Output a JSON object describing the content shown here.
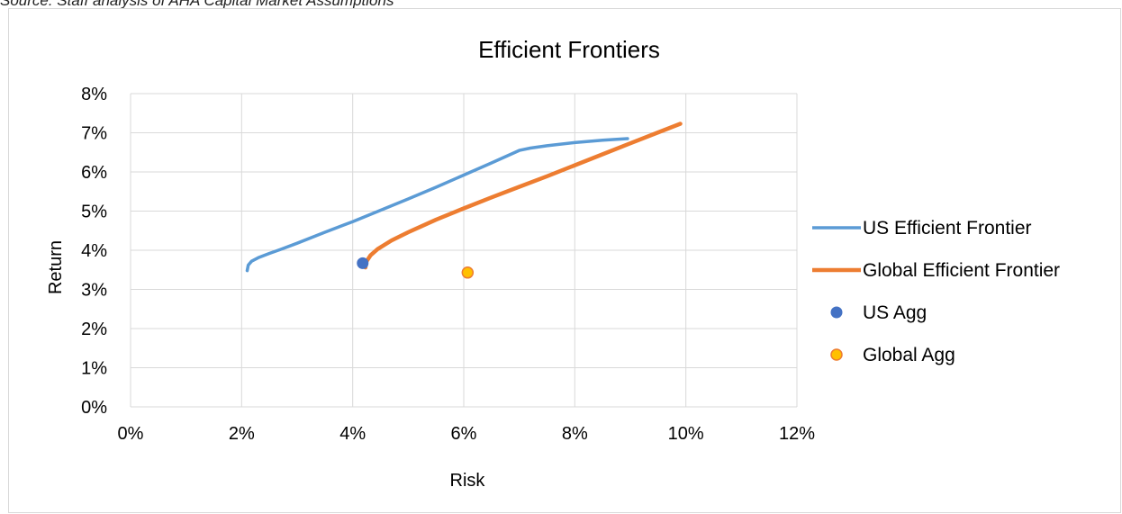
{
  "source_text": "Source: Staff analysis of AHA Capital Market Assumptions",
  "chart_data": {
    "type": "scatter",
    "title": "Efficient Frontiers",
    "xlabel": "Risk",
    "ylabel": "Return",
    "xlim": [
      0,
      0.12
    ],
    "ylim": [
      0,
      0.08
    ],
    "x_ticks": [
      "0%",
      "2%",
      "4%",
      "6%",
      "8%",
      "10%",
      "12%"
    ],
    "y_ticks": [
      "0%",
      "1%",
      "2%",
      "3%",
      "4%",
      "5%",
      "6%",
      "7%",
      "8%"
    ],
    "grid": true,
    "legend_position": "right",
    "series": [
      {
        "name": "US Efficient Frontier",
        "kind": "line",
        "color": "#5b9bd5",
        "points": [
          [
            0.021,
            0.0348
          ],
          [
            0.0212,
            0.0362
          ],
          [
            0.0218,
            0.0372
          ],
          [
            0.023,
            0.0381
          ],
          [
            0.025,
            0.0392
          ],
          [
            0.027,
            0.0402
          ],
          [
            0.03,
            0.0418
          ],
          [
            0.035,
            0.0446
          ],
          [
            0.04,
            0.0473
          ],
          [
            0.045,
            0.0502
          ],
          [
            0.05,
            0.0531
          ],
          [
            0.055,
            0.0561
          ],
          [
            0.06,
            0.0592
          ],
          [
            0.065,
            0.0623
          ],
          [
            0.07,
            0.0655
          ],
          [
            0.072,
            0.0661
          ],
          [
            0.075,
            0.0667
          ],
          [
            0.08,
            0.0675
          ],
          [
            0.085,
            0.0681
          ],
          [
            0.0895,
            0.0685
          ]
        ]
      },
      {
        "name": "Global Efficient Frontier",
        "kind": "line",
        "color": "#ed7d31",
        "points": [
          [
            0.0423,
            0.0356
          ],
          [
            0.0425,
            0.0372
          ],
          [
            0.0432,
            0.0387
          ],
          [
            0.0445,
            0.0403
          ],
          [
            0.047,
            0.0425
          ],
          [
            0.05,
            0.0446
          ],
          [
            0.055,
            0.0478
          ],
          [
            0.06,
            0.0507
          ],
          [
            0.065,
            0.0535
          ],
          [
            0.07,
            0.0562
          ],
          [
            0.075,
            0.0589
          ],
          [
            0.08,
            0.0617
          ],
          [
            0.085,
            0.0645
          ],
          [
            0.09,
            0.0673
          ],
          [
            0.095,
            0.0701
          ],
          [
            0.099,
            0.0723
          ]
        ]
      },
      {
        "name": "US Agg",
        "kind": "point",
        "color": "#4472c4",
        "points": [
          [
            0.0418,
            0.0367
          ]
        ]
      },
      {
        "name": "Global Agg",
        "kind": "point",
        "color": "#ffc000",
        "edge_color": "#ed7d31",
        "points": [
          [
            0.0607,
            0.0343
          ]
        ]
      }
    ]
  }
}
